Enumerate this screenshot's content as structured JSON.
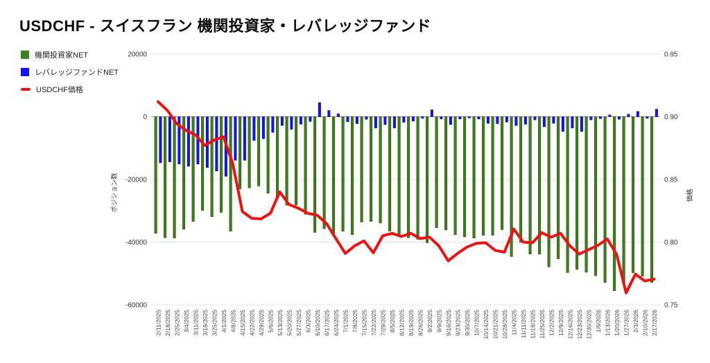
{
  "page": {
    "title": "USDCHF - スイスフラン 機関投資家・レバレッジファンド"
  },
  "chart_data": {
    "type": "combo",
    "title": "USDCHF - スイスフラン 機関投資家・レバレッジファンド",
    "categories": [
      "2/11/2025",
      "2/18/2025",
      "2/25/2025",
      "3/4/2025",
      "3/11/2025",
      "3/18/2025",
      "3/25/2025",
      "4/1/2025",
      "4/8/2025",
      "4/15/2025",
      "4/22/2025",
      "4/29/2025",
      "5/6/2025",
      "5/13/2025",
      "5/20/2025",
      "5/27/2025",
      "6/3/2025",
      "6/10/2025",
      "6/17/2025",
      "6/24/2025",
      "7/1/2025",
      "7/8/2025",
      "7/15/2025",
      "7/22/2025",
      "7/29/2025",
      "8/5/2025",
      "8/12/2025",
      "8/19/2025",
      "8/26/2025",
      "9/2/2025",
      "9/9/2025",
      "9/16/2025",
      "9/23/2025",
      "9/30/2025",
      "10/7/2025",
      "10/14/2025",
      "10/21/2025",
      "10/28/2025",
      "11/4/2025",
      "11/11/2025",
      "11/18/2025",
      "11/25/2025",
      "12/2/2025",
      "12/9/2025",
      "12/16/2025",
      "12/23/2025",
      "12/30/2025",
      "1/6/2026",
      "1/13/2026",
      "1/20/2026",
      "1/27/2026",
      "2/3/2026",
      "2/10/2026",
      "2/17/2026"
    ],
    "series": [
      {
        "name": "機関投資家NET",
        "type": "bar",
        "axis": "left",
        "color": "#3f7f1c",
        "border": "#1e4d0e",
        "values": [
          -37200,
          -38600,
          -38700,
          -35900,
          -33400,
          -29900,
          -31900,
          -30500,
          -36500,
          -23000,
          -22700,
          -22100,
          -24400,
          -26000,
          -28200,
          -28200,
          -31100,
          -36900,
          -35700,
          -37200,
          -36500,
          -37600,
          -33600,
          -33400,
          -33900,
          -36500,
          -38000,
          -38600,
          -39100,
          -40200,
          -35400,
          -36100,
          -37600,
          -38300,
          -38700,
          -37800,
          -37800,
          -36000,
          -44600,
          -40100,
          -43800,
          -43800,
          -47900,
          -45300,
          -49700,
          -48700,
          -49600,
          -50700,
          -52900,
          -55500,
          -53000,
          -49800,
          -50900,
          -52900
        ]
      },
      {
        "name": "レバレッジファンドNET",
        "type": "bar",
        "axis": "left",
        "color": "#1414ee",
        "border": "#0b0bb9",
        "values": [
          -14700,
          -14400,
          -15100,
          -15800,
          -15100,
          -16200,
          -17300,
          -19000,
          -13900,
          -13900,
          -7600,
          -7000,
          -5000,
          -2800,
          -4000,
          -2400,
          -1500,
          4500,
          2000,
          900,
          -1600,
          -2200,
          -800,
          -3600,
          -2500,
          -3600,
          -1800,
          -1400,
          -500,
          2200,
          -700,
          -2500,
          -700,
          -400,
          -700,
          -2100,
          -2200,
          -1700,
          -2800,
          -2400,
          -1000,
          -3200,
          -2100,
          -4700,
          -3600,
          -4700,
          -1000,
          -600,
          600,
          -800,
          800,
          1700,
          -500,
          2400
        ]
      },
      {
        "name": "USDCHF価格",
        "type": "line",
        "axis": "right",
        "color": "#ef1010",
        "values": [
          0.912,
          0.905,
          0.8945,
          0.889,
          0.8855,
          0.877,
          0.8815,
          0.884,
          0.862,
          0.8245,
          0.819,
          0.8185,
          0.823,
          0.84,
          0.83,
          0.827,
          0.823,
          0.8215,
          0.8148,
          0.8028,
          0.791,
          0.797,
          0.801,
          0.7915,
          0.805,
          0.807,
          0.8045,
          0.807,
          0.8028,
          0.804,
          0.797,
          0.785,
          0.791,
          0.796,
          0.799,
          0.7995,
          0.7935,
          0.792,
          0.8105,
          0.8,
          0.7995,
          0.8075,
          0.804,
          0.807,
          0.797,
          0.7905,
          0.794,
          0.7975,
          0.8025,
          0.79,
          0.7595,
          0.7745,
          0.769,
          0.7705
        ]
      }
    ],
    "left_axis": {
      "label": "ポジション数",
      "ticks": [
        20000,
        0,
        -20000,
        -40000,
        -60000
      ],
      "tick_labels": [
        "20000",
        "0",
        "-20000",
        "-40000",
        "-60000"
      ],
      "range": [
        -60000,
        20000
      ]
    },
    "right_axis": {
      "label": "価格",
      "ticks": [
        0.95,
        0.9,
        0.85,
        0.8,
        0.75
      ],
      "tick_labels": [
        "0.95",
        "0.90",
        "0.85",
        "0.80",
        "0.75"
      ],
      "range": [
        0.75,
        0.95
      ]
    },
    "grid": {
      "zero_line_color": "#8a8a8a",
      "line_color": "#e4e4e4",
      "text_color": "#333333"
    }
  }
}
